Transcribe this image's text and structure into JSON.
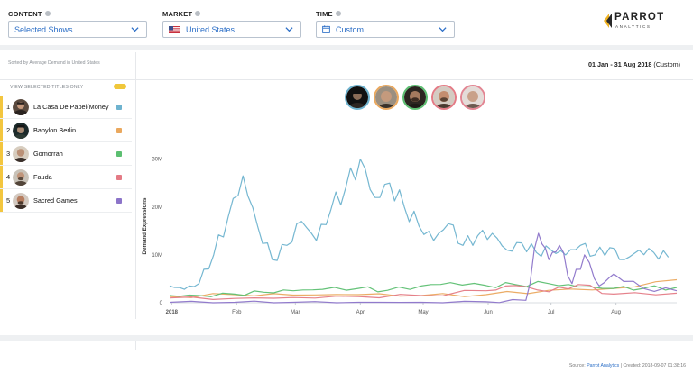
{
  "filters": {
    "content": {
      "label": "CONTENT",
      "value": "Selected Shows"
    },
    "market": {
      "label": "MARKET",
      "value": "United States"
    },
    "time": {
      "label": "TIME",
      "value": "Custom"
    }
  },
  "logo": {
    "name": "PARROT",
    "sub": "ANALYTICS",
    "icon": "parrot-logo-icon"
  },
  "sort_note": "Sorted by Average Demand in United States",
  "date_range": {
    "bold": "01 Jan - 31 Aug 2018",
    "suffix": " (Custom)"
  },
  "view_selected_label": "VIEW SELECTED TITLES ONLY",
  "titles": [
    {
      "rank": "1",
      "name": "La Casa De Papel(Money",
      "color": "#6eb3cf"
    },
    {
      "rank": "2",
      "name": "Babylon Berlin",
      "color": "#eaa85e"
    },
    {
      "rank": "3",
      "name": "Gomorrah",
      "color": "#5cbf71"
    },
    {
      "rank": "4",
      "name": "Fauda",
      "color": "#e47a85"
    },
    {
      "rank": "5",
      "name": "Sacred Games",
      "color": "#8c74c9"
    }
  ],
  "chart_data": {
    "type": "line",
    "ylabel": "Demand Expressions",
    "xlabel": "",
    "yticks": [
      "0",
      "10M",
      "20M",
      "30M"
    ],
    "ylim": [
      0,
      32000000
    ],
    "xticks": [
      "2018",
      "Feb",
      "Mar",
      "Apr",
      "May",
      "Jun",
      "Jul",
      "Aug"
    ],
    "x_unit": "week of 2018",
    "series": [
      {
        "name": "La Casa De Papel(Money",
        "color": "#6eb3cf",
        "x": [
          "Jan 1",
          "Jan 8",
          "Jan 15",
          "Jan 22",
          "Jan 29",
          "Feb 5",
          "Feb 12",
          "Feb 19",
          "Feb 26",
          "Mar 5",
          "Mar 12",
          "Mar 19",
          "Mar 26",
          "Apr 2",
          "Apr 9",
          "Apr 16",
          "Apr 23",
          "Apr 30",
          "May 7",
          "May 14",
          "May 21",
          "May 28",
          "Jun 4",
          "Jun 11",
          "Jun 18",
          "Jun 25",
          "Jul 2",
          "Jul 9",
          "Jul 16",
          "Jul 23",
          "Jul 30",
          "Aug 6",
          "Aug 13",
          "Aug 20",
          "Aug 27"
        ],
        "values": [
          3500000,
          2800000,
          4000000,
          10000000,
          18000000,
          26500000,
          16000000,
          9000000,
          12000000,
          17000000,
          13000000,
          19500000,
          24000000,
          30000000,
          22000000,
          25000000,
          20000000,
          16000000,
          13000000,
          16500000,
          12000000,
          14000000,
          14500000,
          11000000,
          12500000,
          10500000,
          11000000,
          10000000,
          12000000,
          10000000,
          11500000,
          9000000,
          11000000,
          10500000,
          9500000
        ]
      },
      {
        "name": "Babylon Berlin",
        "color": "#eaa85e",
        "x": [
          "Jan 1",
          "Feb 1",
          "Mar 1",
          "Apr 1",
          "May 1",
          "Jun 1",
          "Jul 1",
          "Aug 1",
          "Aug 31"
        ],
        "values": [
          1300000,
          1700000,
          1600000,
          1700000,
          1500000,
          1700000,
          2600000,
          3000000,
          4800000
        ]
      },
      {
        "name": "Gomorrah",
        "color": "#5cbf71",
        "x": [
          "Jan 1",
          "Jan 15",
          "Feb 1",
          "Feb 15",
          "Mar 1",
          "Mar 15",
          "Apr 1",
          "Apr 15",
          "May 1",
          "May 15",
          "Jun 1",
          "Jun 15",
          "Jul 1",
          "Jul 15",
          "Aug 1",
          "Aug 15",
          "Aug 31"
        ],
        "values": [
          1500000,
          1500000,
          1800000,
          2200000,
          2500000,
          2800000,
          3000000,
          2600000,
          3500000,
          4200000,
          3600000,
          3800000,
          4000000,
          3300000,
          3000000,
          3000000,
          3200000
        ]
      },
      {
        "name": "Fauda",
        "color": "#e47a85",
        "x": [
          "Jan 1",
          "Feb 1",
          "Mar 1",
          "Apr 1",
          "May 1",
          "Jun 1",
          "Jun 15",
          "Jul 1",
          "Jul 15",
          "Aug 1",
          "Aug 31"
        ],
        "values": [
          1000000,
          900000,
          1100000,
          1300000,
          1500000,
          2500000,
          3600000,
          2300000,
          3800000,
          1800000,
          2000000
        ]
      },
      {
        "name": "Sacred Games",
        "color": "#8c74c9",
        "x": [
          "Jan 1",
          "Feb 1",
          "Mar 1",
          "Apr 1",
          "May 1",
          "Jun 1",
          "Jun 20",
          "Jun 26",
          "Jul 1",
          "Jul 6",
          "Jul 12",
          "Jul 18",
          "Jul 25",
          "Aug 1",
          "Aug 15",
          "Aug 31"
        ],
        "values": [
          100000,
          100000,
          100000,
          100000,
          100000,
          200000,
          500000,
          14500000,
          9000000,
          12000000,
          4000000,
          10000000,
          3500000,
          6000000,
          3000000,
          2500000
        ]
      }
    ]
  },
  "footer": {
    "source_prefix": "Source: ",
    "source": "Parrot Analytics",
    "created": " | Created: 2018-09-07 01:38:16"
  }
}
